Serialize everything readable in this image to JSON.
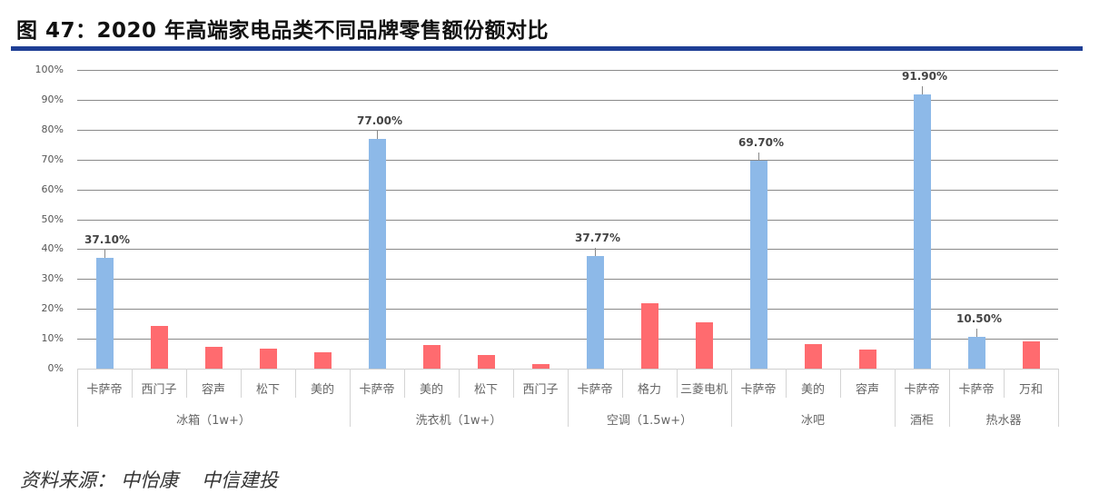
{
  "header": {
    "title": "图 47：2020 年高端家电品类不同品牌零售额份额对比",
    "rule_color": "#1f3f95"
  },
  "footer": {
    "source_label": "资料来源：",
    "source_orgs": [
      "中怡康",
      "中信建投"
    ]
  },
  "colors": {
    "highlight": "#8db9e8",
    "others": "#ff6b6f"
  },
  "chart_data": {
    "type": "bar",
    "title": "2020 年高端家电品类不同品牌零售额份额对比",
    "xlabel": "",
    "ylabel": "",
    "ylim": [
      0,
      100
    ],
    "yticks": [
      "0%",
      "10%",
      "20%",
      "30%",
      "40%",
      "50%",
      "60%",
      "70%",
      "80%",
      "90%",
      "100%"
    ],
    "grid": true,
    "legend": null,
    "groups": [
      {
        "name": "冰箱（1w+）",
        "brands": [
          "卡萨帝",
          "西门子",
          "容声",
          "松下",
          "美的"
        ]
      },
      {
        "name": "洗衣机（1w+）",
        "brands": [
          "卡萨帝",
          "美的",
          "松下",
          "西门子"
        ]
      },
      {
        "name": "空调（1.5w+）",
        "brands": [
          "卡萨帝",
          "格力",
          "三菱电机"
        ]
      },
      {
        "name": "冰吧",
        "brands": [
          "卡萨帝",
          "美的",
          "容声"
        ]
      },
      {
        "name": "酒柜",
        "brands": [
          "卡萨帝"
        ]
      },
      {
        "name": "热水器",
        "brands": [
          "卡萨帝",
          "万和"
        ]
      }
    ],
    "categories": [
      "卡萨帝",
      "西门子",
      "容声",
      "松下",
      "美的",
      "卡萨帝",
      "美的",
      "松下",
      "西门子",
      "卡萨帝",
      "格力",
      "三菱电机",
      "卡萨帝",
      "美的",
      "容声",
      "卡萨帝",
      "卡萨帝",
      "万和"
    ],
    "values": [
      37.1,
      14.3,
      7.3,
      6.7,
      5.5,
      77.0,
      7.9,
      4.6,
      1.5,
      37.77,
      22.0,
      15.5,
      69.7,
      8.2,
      6.4,
      91.9,
      10.5,
      9.2
    ],
    "highlighted": [
      true,
      false,
      false,
      false,
      false,
      true,
      false,
      false,
      false,
      true,
      false,
      false,
      true,
      false,
      false,
      true,
      true,
      false
    ],
    "data_labels": [
      "37.10%",
      null,
      null,
      null,
      null,
      "77.00%",
      null,
      null,
      null,
      "37.77%",
      null,
      null,
      "69.70%",
      null,
      null,
      "91.90%",
      "10.50%",
      null
    ]
  }
}
